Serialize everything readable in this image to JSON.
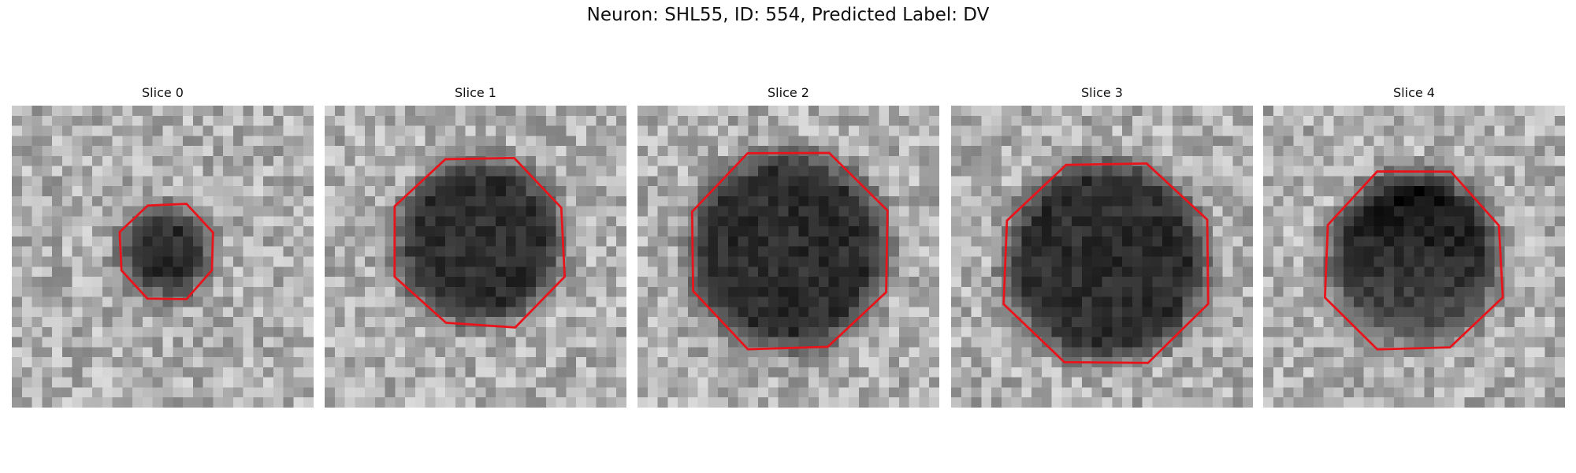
{
  "title": "Neuron: SHL55, ID: 554, Predicted Label: DV",
  "panels": [
    {
      "title": "Slice 0"
    },
    {
      "title": "Slice 1"
    },
    {
      "title": "Slice 2"
    },
    {
      "title": "Slice 3"
    },
    {
      "title": "Slice 4"
    }
  ]
}
